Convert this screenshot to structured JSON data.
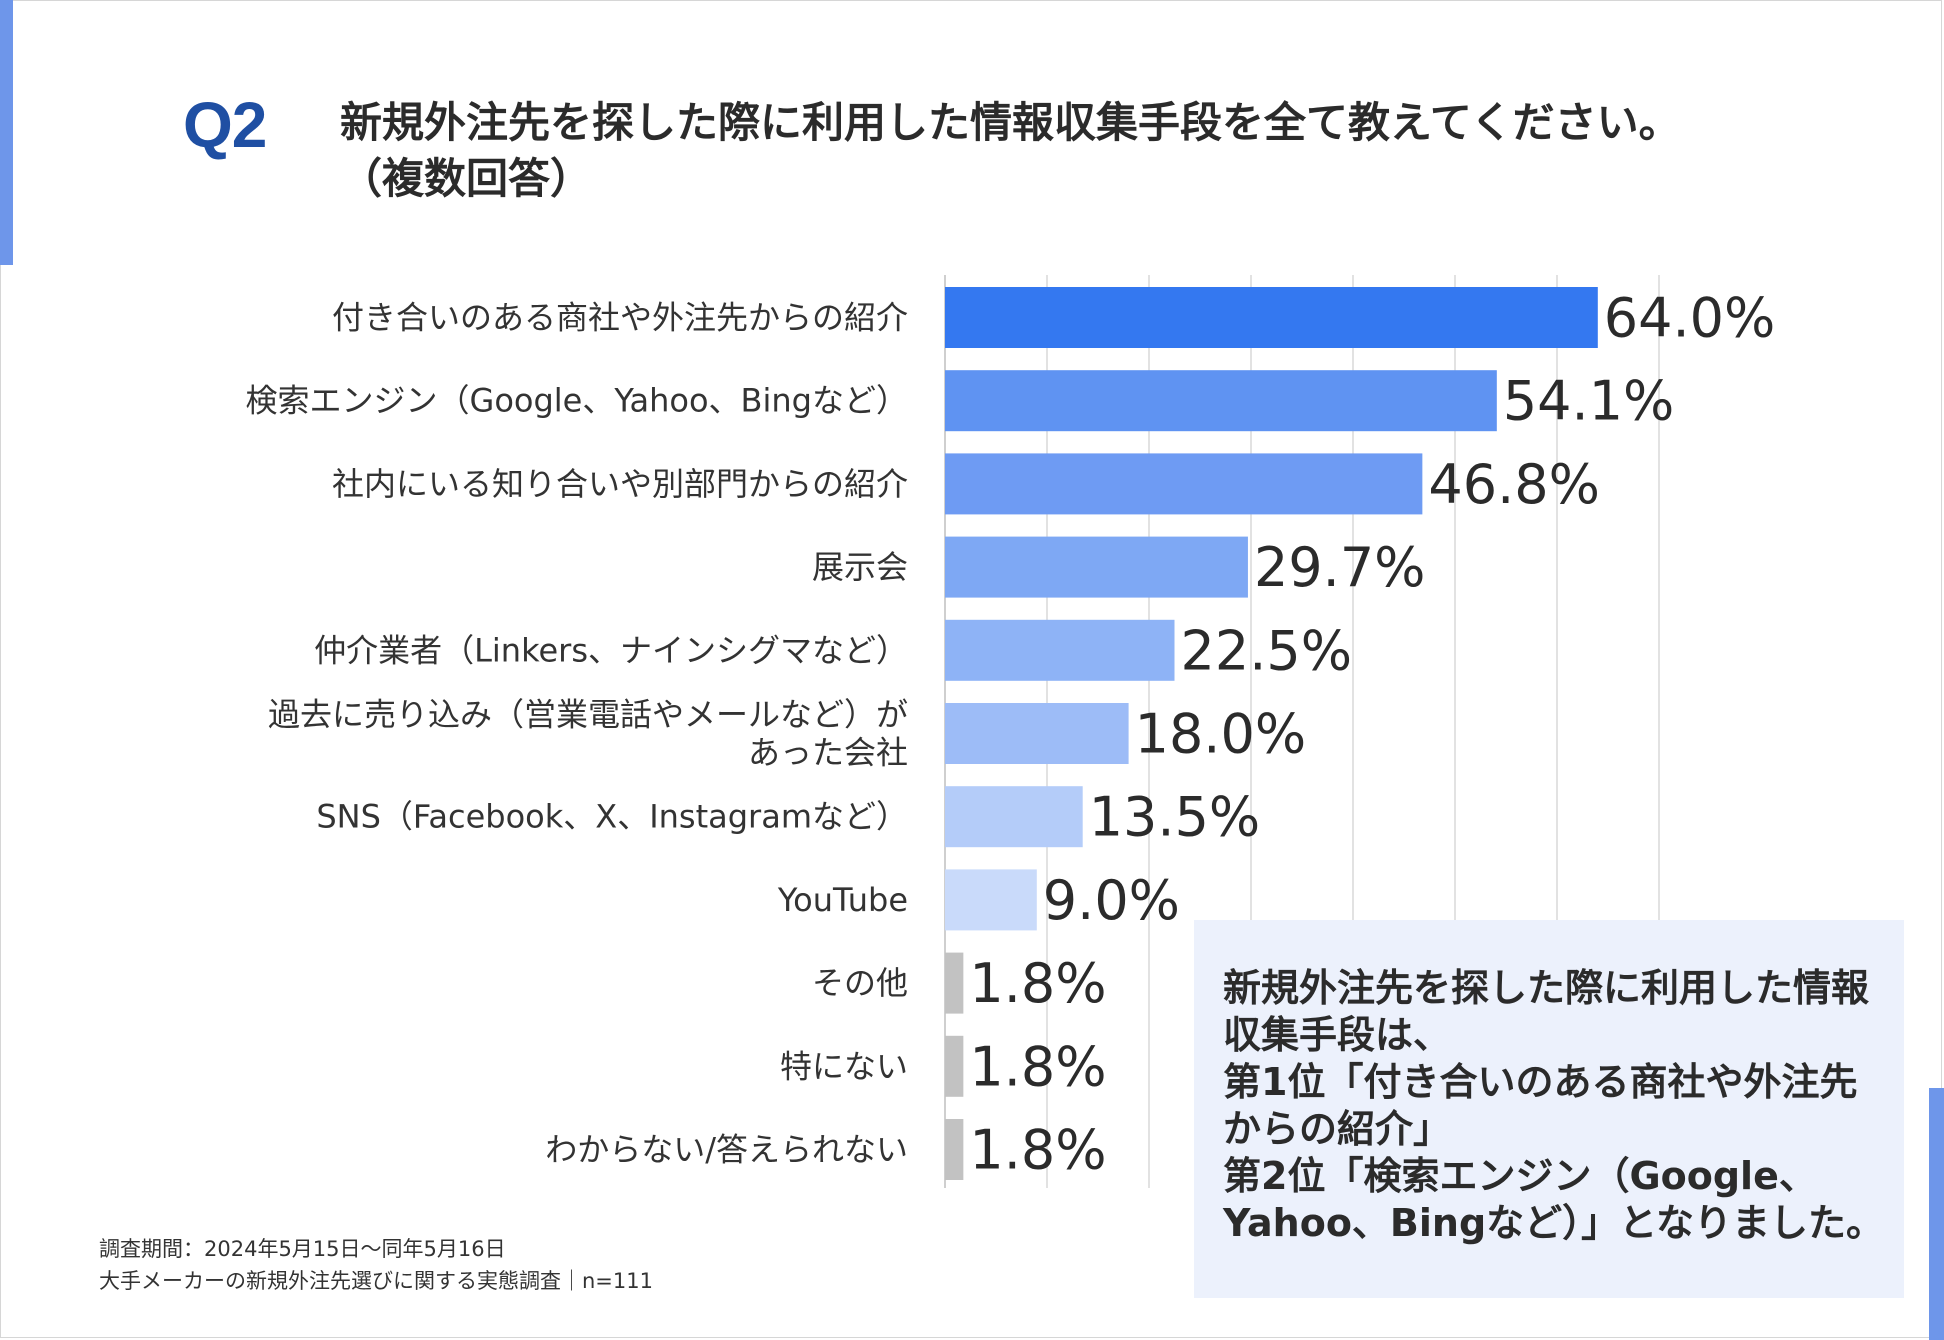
{
  "header": {
    "q_label": "Q2",
    "title_line1": "新規外注先を探した際に利用した情報収集手段を全て教えてください。",
    "title_line2": "（複数回答）"
  },
  "chart_data": {
    "type": "bar",
    "orientation": "horizontal",
    "categories": [
      [
        "付き合いのある商社や外注先からの紹介"
      ],
      [
        "検索エンジン（Google、Yahoo、Bingなど）"
      ],
      [
        "社内にいる知り合いや別部門からの紹介"
      ],
      [
        "展示会"
      ],
      [
        "仲介業者（Linkers、ナインシグマなど）"
      ],
      [
        "過去に売り込み（営業電話やメールなど）が",
        "あった会社"
      ],
      [
        "SNS（Facebook、X、Instagramなど）"
      ],
      [
        "YouTube"
      ],
      [
        "その他"
      ],
      [
        "特にない"
      ],
      [
        "わからない/答えられない"
      ]
    ],
    "values": [
      64.0,
      54.1,
      46.8,
      29.7,
      22.5,
      18.0,
      13.5,
      9.0,
      1.8,
      1.8,
      1.8
    ],
    "value_labels": [
      "64.0%",
      "54.1%",
      "46.8%",
      "29.7%",
      "22.5%",
      "18.0%",
      "13.5%",
      "9.0%",
      "1.8%",
      "1.8%",
      "1.8%"
    ],
    "colors": [
      "#3478f0",
      "#5f93f2",
      "#6e9bf3",
      "#7ea8f4",
      "#8eb3f6",
      "#9dbcf7",
      "#b4ccf9",
      "#c9dafa",
      "#c2c2c2",
      "#c2c2c2",
      "#c2c2c2"
    ],
    "xlim": [
      0,
      100
    ],
    "grid": true
  },
  "summary": {
    "lines": [
      "新規外注先を探した際に利用した情報",
      "収集手段は、",
      "第1位「付き合いのある商社や外注先",
      "からの紹介」",
      "第2位「検索エンジン（Google、",
      "Yahoo、Bingなど）」となりました。"
    ]
  },
  "footnote": {
    "line1": "調査期間：2024年5月15日～同年5月16日",
    "line2": "大手メーカーの新規外注先選びに関する実態調査｜n=111"
  }
}
